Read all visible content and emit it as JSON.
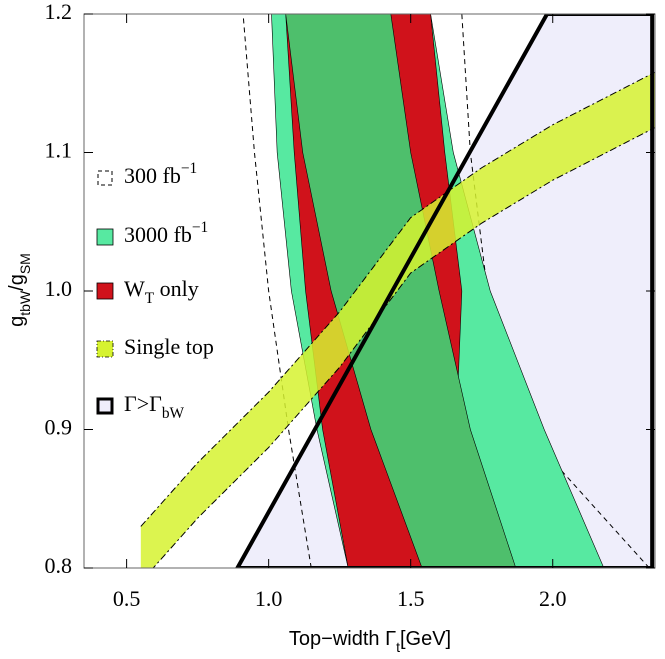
{
  "chart_data": {
    "type": "band",
    "xlabel": [
      "Top−width Γ",
      {
        "sub": "t"
      },
      "[GeV]"
    ],
    "ylabel": [
      "g",
      {
        "sub": "tbW"
      },
      "/g",
      {
        "sub": "SM"
      }
    ],
    "xlim": [
      0.35,
      2.36
    ],
    "ylim": [
      0.8,
      1.2
    ],
    "xticks": [
      0.5,
      {
        "value": 1,
        "label": "1.0"
      },
      1.5,
      {
        "value": 2,
        "label": "2.0"
      }
    ],
    "yticks": [
      0.8,
      0.9,
      {
        "value": 1,
        "label": "1.0"
      },
      1.1,
      1.2
    ],
    "series": [
      {
        "name": [
          "300 fb",
          {
            "sup": "−1"
          }
        ],
        "style": "dashed",
        "color": "#000000",
        "y": [
          0.8,
          0.9,
          1.0,
          1.1,
          1.2
        ],
        "x_low": [
          1.15,
          1.07,
          1.0,
          0.95,
          0.91
        ],
        "x_high": [
          2.34,
          1.9,
          1.77,
          1.71,
          1.68
        ]
      },
      {
        "name": [
          "3000 fb",
          {
            "sup": "−1"
          }
        ],
        "style": "filled",
        "color": "#57e9a1",
        "y": [
          0.8,
          0.9,
          1.0,
          1.1,
          1.2
        ],
        "x_low": [
          1.28,
          1.17,
          1.08,
          1.03,
          1.01
        ],
        "x_high": [
          2.18,
          1.97,
          1.78,
          1.65,
          1.57
        ],
        "inner_color": "#4ebf6c",
        "inner_x_low": [
          1.54,
          1.36,
          1.22,
          1.12,
          1.06
        ],
        "inner_x_high": [
          1.87,
          1.71,
          1.6,
          1.5,
          1.43
        ]
      },
      {
        "name": [
          "W",
          {
            "sub": "T"
          },
          " only"
        ],
        "style": "filled",
        "color": "#d0121b",
        "y": [
          0.8,
          0.9,
          1.0,
          1.1,
          1.2
        ],
        "x_low": [
          1.28,
          1.19,
          1.13,
          1.09,
          1.06
        ],
        "x_high": [
          1.62,
          1.66,
          1.68,
          1.62,
          1.57
        ]
      },
      {
        "name": [
          "Single top"
        ],
        "style": "dashdot",
        "color": "#d6f230",
        "x": [
          0.55,
          0.75,
          1.0,
          1.25,
          1.5,
          1.75,
          2.0,
          2.36
        ],
        "y_low": [
          0.79,
          0.836,
          0.887,
          0.945,
          1.013,
          1.049,
          1.08,
          1.118
        ],
        "y_high": [
          0.83,
          0.876,
          0.927,
          0.985,
          1.053,
          1.089,
          1.12,
          1.158
        ]
      },
      {
        "name": [
          "Γ>Γ",
          {
            "sub": "bW"
          }
        ],
        "style": "outline",
        "color": "#efeefb",
        "edge_color": "#000000",
        "x": [
          0.89,
          1.98,
          2.35,
          2.35
        ],
        "y": [
          0.8,
          1.2,
          1.2,
          0.8
        ]
      }
    ]
  }
}
